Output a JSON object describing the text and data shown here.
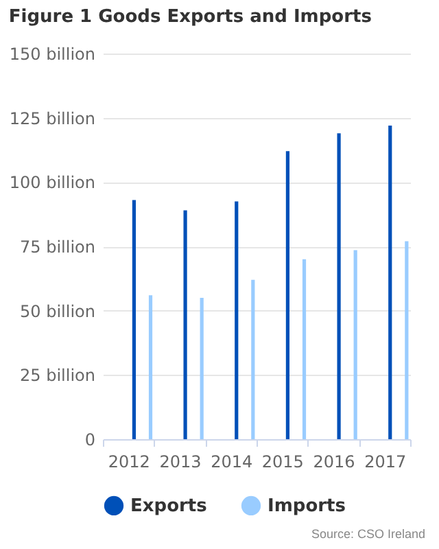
{
  "chart_data": {
    "type": "bar",
    "title": "Figure 1 Goods Exports and Imports",
    "categories": [
      "2012",
      "2013",
      "2014",
      "2015",
      "2016",
      "2017"
    ],
    "series": [
      {
        "name": "Exports",
        "color": "#0050b8",
        "values": [
          93,
          89,
          92.5,
          112,
          119,
          122
        ]
      },
      {
        "name": "Imports",
        "color": "#99ccff",
        "values": [
          56,
          55,
          62,
          70,
          73.5,
          77
        ]
      }
    ],
    "ylim": [
      0,
      150
    ],
    "yticks": [
      {
        "value": 0,
        "label": "0"
      },
      {
        "value": 25,
        "label": "25 billion"
      },
      {
        "value": 50,
        "label": "50 billion"
      },
      {
        "value": 75,
        "label": "75 billion"
      },
      {
        "value": 100,
        "label": "100 billion"
      },
      {
        "value": 125,
        "label": "125 billion"
      },
      {
        "value": 150,
        "label": "150 billion"
      }
    ],
    "grid": "y",
    "legend": "bottom",
    "annotations": [
      "Source: CSO Ireland"
    ]
  }
}
